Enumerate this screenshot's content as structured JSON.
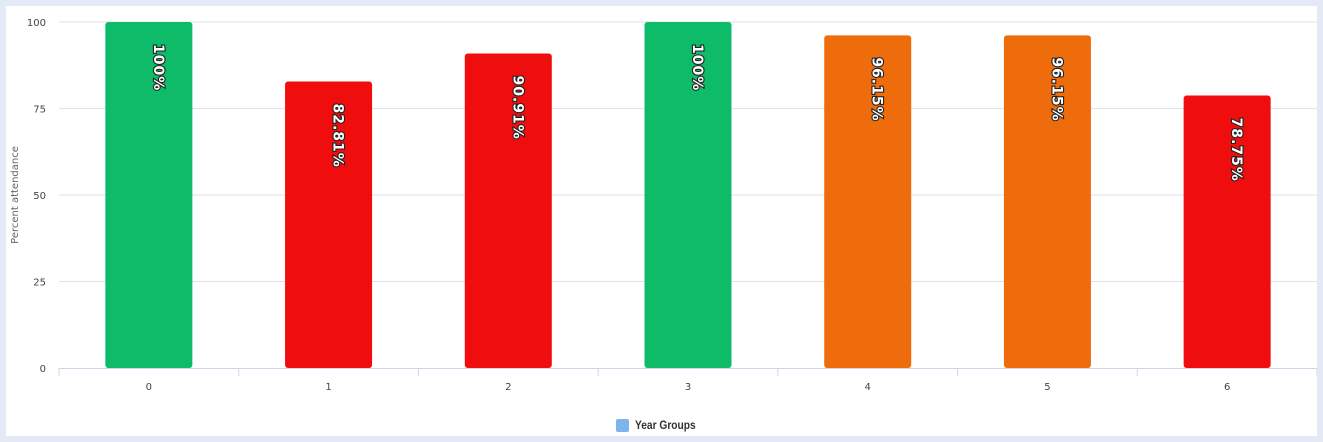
{
  "chart_data": {
    "type": "bar",
    "categories": [
      "0",
      "1",
      "2",
      "3",
      "4",
      "5",
      "6"
    ],
    "values": [
      100,
      82.81,
      90.91,
      100,
      96.15,
      96.15,
      78.75
    ],
    "data_labels": [
      "100%",
      "82.81%",
      "90.91%",
      "100%",
      "96.15%",
      "96.15%",
      "78.75%"
    ],
    "bar_colors": [
      "#0dbb68",
      "#ef0d0d",
      "#ef0d0d",
      "#0dbb68",
      "#ef6c0c",
      "#ef6c0c",
      "#ef0d0d"
    ],
    "ylabel": "Percent attendance",
    "xlabel": "",
    "ylim": [
      0,
      100
    ],
    "yticks": [
      "0",
      "25",
      "50",
      "75",
      "100"
    ],
    "grid": true,
    "legend": {
      "position": "bottom-center",
      "entries": [
        {
          "name": "Year Groups",
          "color": "#7cb5ec"
        }
      ]
    }
  }
}
